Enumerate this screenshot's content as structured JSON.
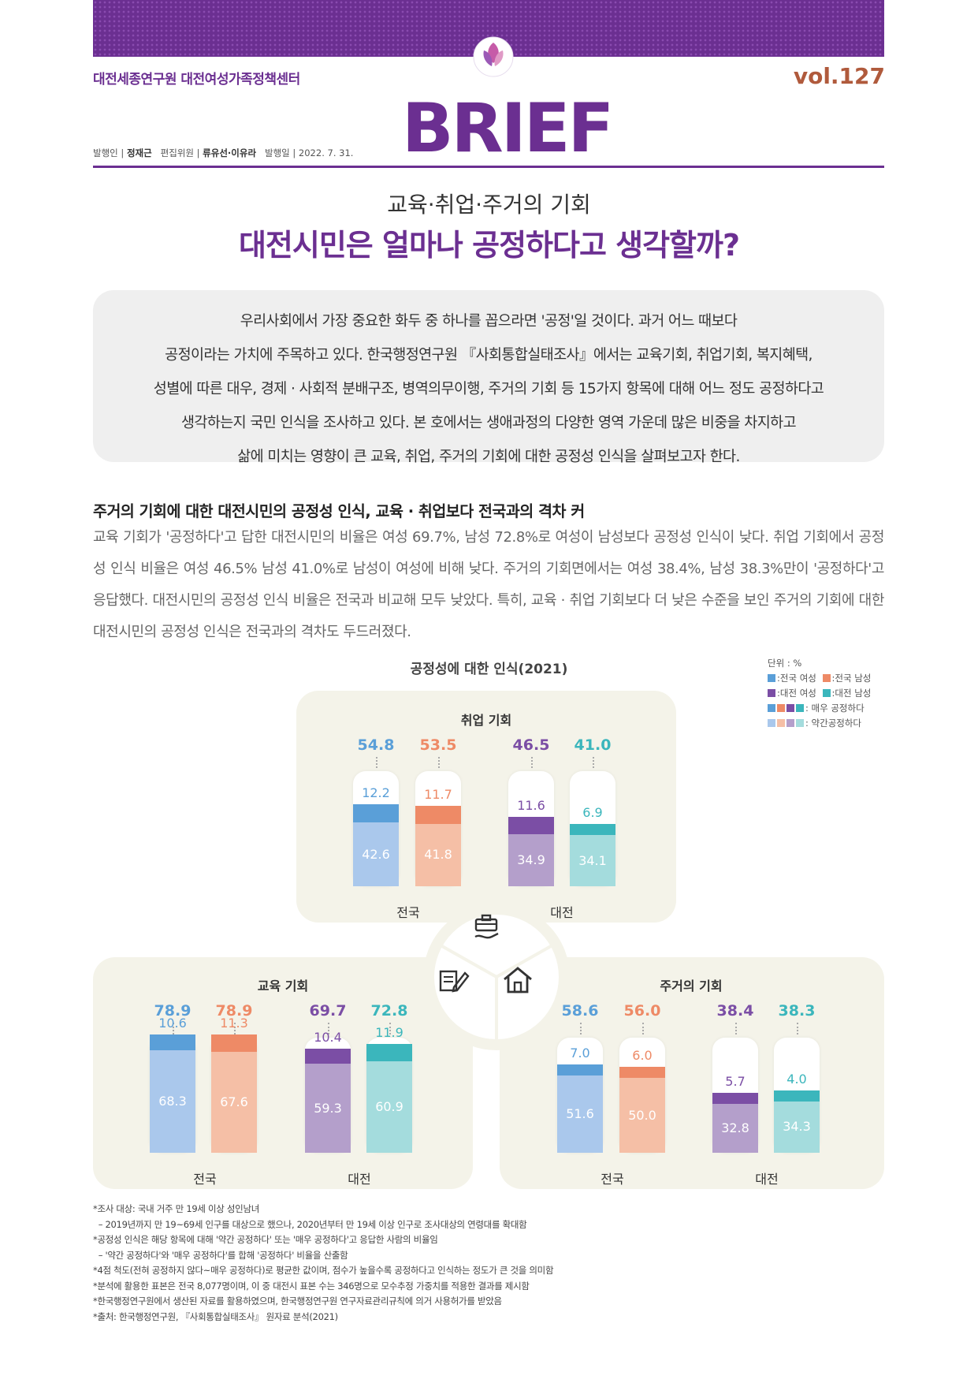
{
  "header": {
    "org": "대전세종연구원 대전여성가족정책센터",
    "volume": "vol.127",
    "brand": "BRIEF",
    "pub_label": "발행인 |",
    "publisher": "정재근",
    "editor_label": "편집위원 |",
    "editors": "류유선·이유라",
    "date_label": "발행일 | 2022. 7. 31."
  },
  "title": {
    "sub": "교육·취업·주거의 기회",
    "main": "대전시민은 얼마나 공정하다고 생각할까?"
  },
  "intro": [
    "우리사회에서 가장 중요한 화두 중 하나를 꼽으라면 '공정'일 것이다. 과거 어느 때보다",
    "공정이라는 가치에 주목하고 있다. 한국행정연구원 『사회통합실태조사』에서는 교육기회, 취업기회, 복지혜택,",
    "성별에 따른 대우, 경제 · 사회적 분배구조, 병역의무이행, 주거의 기회 등 15가지 항목에 대해 어느 정도 공정하다고",
    "생각하는지 국민 인식을 조사하고 있다. 본 호에서는 생애과정의 다양한 영역 가운데 많은 비중을 차지하고",
    "삶에 미치는 영향이 큰 교육, 취업, 주거의 기회에 대한 공정성 인식을 살펴보고자 한다."
  ],
  "section": {
    "heading": "주거의 기회에 대한 대전시민의 공정성 인식, 교육 · 취업보다 전국과의 격차 커",
    "body": "교육 기회가 '공정하다'고 답한 대전시민의 비율은 여성 69.7%, 남성 72.8%로 여성이 남성보다 공정성 인식이 낮다. 취업 기회에서 공정성 인식 비율은 여성 46.5% 남성 41.0%로 남성이 여성에 비해 낮다. 주거의 기회면에서는 여성 38.4%, 남성 38.3%만이 '공정하다'고 응답했다. 대전시민의 공정성 인식 비율은 전국과 비교해 모두 낮았다. 특히, 교육 · 취업 기회보다 더 낮은 수준을 보인 주거의 기회에 대한 대전시민의 공정성 인식은 전국과의 격차도 두드러졌다."
  },
  "chart_data": {
    "type": "bar",
    "title": "공정성에 대한 인식(2021)",
    "unit": "단위 : %",
    "legend": [
      "전국 여성",
      "전국 남성",
      "대전 여성",
      "대전 남성"
    ],
    "legend_very": ": 매우 공정하다",
    "legend_somewhat": ": 약간공정하다",
    "groups": [
      "전국",
      "대전"
    ],
    "colors": {
      "national_female": [
        "#5a9fd8",
        "#aac8ec"
      ],
      "national_male": [
        "#ee8a66",
        "#f5bfa6"
      ],
      "daejeon_female": [
        "#7b4ea5",
        "#b49fcb"
      ],
      "daejeon_male": [
        "#3bb6bc",
        "#a4dcdd"
      ]
    },
    "panels": [
      {
        "name": "취업 기회",
        "bars": [
          {
            "series": "전국 여성",
            "total": "54.8",
            "very": 12.2,
            "somewhat": 42.6,
            "very_label": "12.2",
            "somewhat_label": "42.6"
          },
          {
            "series": "전국 남성",
            "total": "53.5",
            "very": 11.7,
            "somewhat": 41.8,
            "very_label": "11.7",
            "somewhat_label": "41.8"
          },
          {
            "series": "대전 여성",
            "total": "46.5",
            "very": 11.6,
            "somewhat": 34.9,
            "very_label": "11.6",
            "somewhat_label": "34.9"
          },
          {
            "series": "대전 남성",
            "total": "41.0",
            "very": 6.9,
            "somewhat": 34.1,
            "very_label": "6.9",
            "somewhat_label": "34.1"
          }
        ]
      },
      {
        "name": "교육 기회",
        "bars": [
          {
            "series": "전국 여성",
            "total": "78.9",
            "very": 10.6,
            "somewhat": 68.3,
            "very_label": "10.6",
            "somewhat_label": "68.3"
          },
          {
            "series": "전국 남성",
            "total": "78.9",
            "very": 11.3,
            "somewhat": 67.6,
            "very_label": "11.3",
            "somewhat_label": "67.6"
          },
          {
            "series": "대전 여성",
            "total": "69.7",
            "very": 10.4,
            "somewhat": 59.3,
            "very_label": "10.4",
            "somewhat_label": "59.3"
          },
          {
            "series": "대전 남성",
            "total": "72.8",
            "very": 11.9,
            "somewhat": 60.9,
            "very_label": "11.9",
            "somewhat_label": "60.9"
          }
        ]
      },
      {
        "name": "주거의 기회",
        "bars": [
          {
            "series": "전국 여성",
            "total": "58.6",
            "very": 7.0,
            "somewhat": 51.6,
            "very_label": "7.0",
            "somewhat_label": "51.6"
          },
          {
            "series": "전국 남성",
            "total": "56.0",
            "very": 6.0,
            "somewhat": 50.0,
            "very_label": "6.0",
            "somewhat_label": "50.0"
          },
          {
            "series": "대전 여성",
            "total": "38.4",
            "very": 5.7,
            "somewhat": 32.8,
            "very_label": "5.7",
            "somewhat_label": "32.8"
          },
          {
            "series": "대전 남성",
            "total": "38.3",
            "very": 4.0,
            "somewhat": 34.3,
            "very_label": "4.0",
            "somewhat_label": "34.3"
          }
        ]
      }
    ]
  },
  "icons": [
    "briefcase-icon",
    "education-icon",
    "house-icon"
  ],
  "notes": [
    "*조사 대상: 국내 거주 만 19세 이상 성인남녀",
    "  – 2019년까지 만 19~69세 인구를 대상으로 했으나, 2020년부터 만 19세 이상 인구로 조사대상의 연령대를 확대함",
    "*공정성 인식은 해당 항목에 대해 '약간 공정하다' 또는 '매우 공정하다'고 응답한 사람의 비율임",
    "  – '약간 공정하다'와 '매우 공정하다'를 합해 '공정하다' 비율을 산출함",
    "*4점 척도(전혀 공정하지 않다~매우 공정하다)로 평균한 값이며, 점수가 높을수록 공정하다고 인식하는 정도가 큰 것을 의미함",
    "*분석에 활용한 표본은 전국 8,077명이며, 이 중 대전시 표본 수는 346명으로 모수추정 가중치를 적용한 결과를 제시함",
    "*한국행정연구원에서 생산된 자료를 활용하였으며, 한국행정연구원 연구자료관리규칙에 의거 사용허가를 받았음",
    "*출처: 한국행정연구원, 『사회통합실태조사』 원자료 분석(2021)"
  ]
}
